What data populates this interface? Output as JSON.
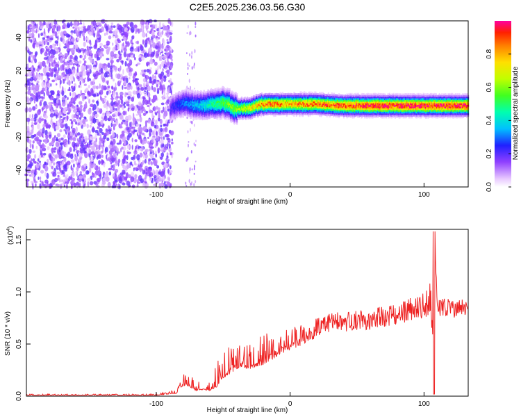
{
  "figure_title": "C2E5.2025.236.03.56.G30",
  "chart_data": [
    {
      "type": "heatmap",
      "title": "C2E5.2025.236.03.56.G30",
      "xlabel": "Height of straight line (km)",
      "ylabel": "Frequency (Hz)",
      "xlim": [
        -197,
        133
      ],
      "ylim": [
        -50,
        50
      ],
      "xticks": [
        -100,
        0,
        100
      ],
      "xtick_labels": [
        "-100",
        "0",
        "100"
      ],
      "yticks": [
        -40,
        -20,
        0,
        20,
        40
      ],
      "ytick_labels": [
        "-40",
        "-20",
        "0",
        "20",
        "40"
      ],
      "colorbar": {
        "label": "Normalized spectral amplitude",
        "range": [
          0,
          1
        ],
        "ticks": [
          0.0,
          0.2,
          0.4,
          0.6,
          0.8
        ],
        "tick_labels": [
          "0.0",
          "0.2",
          "0.4",
          "0.6",
          "0.8"
        ]
      },
      "ridge": {
        "description_points_x": [
          -90,
          -80,
          -70,
          -60,
          -50,
          -40,
          -30,
          -20,
          -10,
          0,
          10,
          20,
          40,
          60,
          80,
          100,
          133
        ],
        "frequency_hz": [
          -3,
          1,
          -1,
          0,
          1,
          -3,
          -2,
          0,
          0,
          0,
          0,
          0,
          -1,
          -1,
          -1,
          -1,
          -1
        ],
        "peak_amplitude": [
          0.2,
          0.3,
          0.35,
          0.45,
          0.55,
          0.6,
          0.7,
          0.85,
          0.85,
          0.8,
          0.85,
          0.85,
          0.9,
          0.95,
          0.95,
          0.95,
          0.95
        ]
      },
      "noise_region_x": [
        -197,
        -88
      ]
    },
    {
      "type": "line",
      "title": "",
      "xlabel": "Height of straight line (km)",
      "ylabel": "SNR (10 * v/v)",
      "y_multiplier": "(x10",
      "y_multiplier_exp": "4",
      "y_multiplier_close": ")",
      "xlim": [
        -197,
        133
      ],
      "ylim": [
        0,
        1.6
      ],
      "xticks": [
        -100,
        0,
        100
      ],
      "xtick_labels": [
        "-100",
        "0",
        "100"
      ],
      "yticks": [
        0,
        0.5,
        1.0,
        1.5
      ],
      "ytick_labels": [
        "0.0",
        "0.5",
        "1.0",
        "1.5"
      ],
      "series": [
        {
          "name": "SNR",
          "color": "#ee2222",
          "x": [
            -197,
            -150,
            -100,
            -85,
            -80,
            -75,
            -70,
            -65,
            -60,
            -55,
            -50,
            -45,
            -40,
            -35,
            -30,
            -25,
            -20,
            -15,
            -10,
            -5,
            0,
            5,
            10,
            15,
            20,
            25,
            30,
            35,
            40,
            50,
            60,
            70,
            80,
            90,
            100,
            105,
            107,
            108,
            110,
            120,
            133
          ],
          "y": [
            0.01,
            0.01,
            0.01,
            0.03,
            0.12,
            0.1,
            0.06,
            0.07,
            0.06,
            0.1,
            0.2,
            0.25,
            0.3,
            0.32,
            0.3,
            0.33,
            0.35,
            0.4,
            0.45,
            0.47,
            0.5,
            0.55,
            0.58,
            0.62,
            0.66,
            0.7,
            0.72,
            0.73,
            0.72,
            0.74,
            0.75,
            0.78,
            0.8,
            0.85,
            0.88,
            0.9,
            0.5,
            1.5,
            0.9,
            0.88,
            0.88
          ],
          "envelope_upper": [
            0.02,
            0.02,
            0.02,
            0.06,
            0.25,
            0.22,
            0.14,
            0.18,
            0.16,
            0.3,
            0.48,
            0.5,
            0.5,
            0.5,
            0.55,
            0.58,
            0.6,
            0.62,
            0.6,
            0.63,
            0.66,
            0.68,
            0.7,
            0.72,
            0.75,
            0.77,
            0.8,
            0.82,
            0.82,
            0.82,
            0.84,
            0.86,
            0.88,
            0.95,
            1.0,
            1.15,
            1.6,
            1.6,
            0.93,
            0.94,
            0.93
          ]
        }
      ]
    }
  ]
}
